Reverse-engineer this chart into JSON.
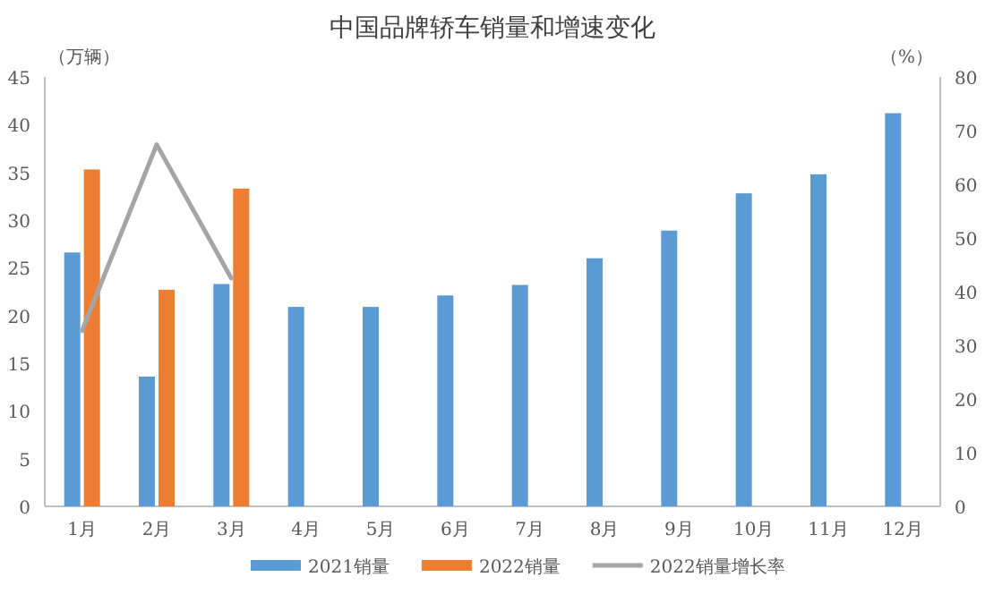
{
  "chart_data": {
    "type": "bar",
    "title": "中国品牌轿车销量和增速变化",
    "ylabel": "（万辆）",
    "y2label": "（%）",
    "categories": [
      "1月",
      "2月",
      "3月",
      "4月",
      "5月",
      "6月",
      "7月",
      "8月",
      "9月",
      "10月",
      "11月",
      "12月"
    ],
    "series": [
      {
        "name": "2021销量",
        "color": "#5b9bd5",
        "values": [
          26.6,
          13.6,
          23.3,
          20.9,
          20.9,
          22.1,
          23.2,
          26,
          28.9,
          32.8,
          34.8,
          41.2
        ]
      },
      {
        "name": "2022销量",
        "color": "#ed7d31",
        "values": [
          35.3,
          22.7,
          33.3,
          null,
          null,
          null,
          null,
          null,
          null,
          null,
          null,
          null
        ]
      },
      {
        "name": "2022销量增长率",
        "type": "line",
        "axis": "y2",
        "color": "#a5a5a5",
        "values": [
          32.7,
          67.4,
          42.5,
          null,
          null,
          null,
          null,
          null,
          null,
          null,
          null,
          null
        ]
      }
    ],
    "ylim": [
      0,
      45
    ],
    "yticks": [
      0,
      5,
      10,
      15,
      20,
      25,
      30,
      35,
      40,
      45
    ],
    "y2lim": [
      0,
      80
    ],
    "y2ticks": [
      0,
      10,
      20,
      30,
      40,
      50,
      60,
      70,
      80
    ],
    "grid": false,
    "legend": "bottom",
    "marker": "none",
    "line_style": "solid"
  }
}
